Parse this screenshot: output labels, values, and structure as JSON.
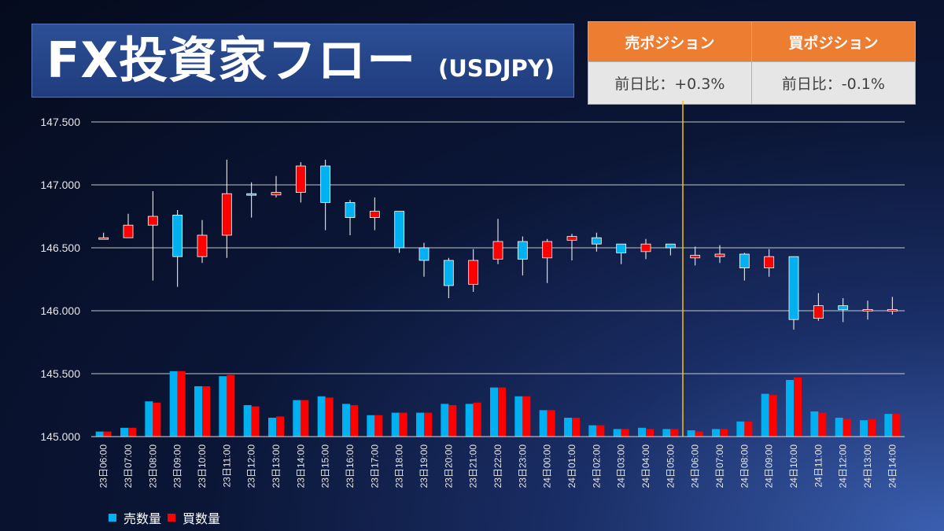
{
  "title": {
    "main": "FX投資家フロー",
    "pair": "(USDJPY)"
  },
  "positions": {
    "sell": {
      "label": "売ポジション",
      "change": "前日比：+0.3%"
    },
    "buy": {
      "label": "買ポジション",
      "change": "前日比：-0.1%"
    }
  },
  "colors": {
    "up": "#ff0000",
    "down": "#00b0f0",
    "sell_volume": "#00b0f0",
    "buy_volume": "#ff0000",
    "divider": "#ffc000",
    "grid": "#d9d9d9"
  },
  "chart_data": {
    "type": "candlestick",
    "ylim": [
      145.0,
      147.5
    ],
    "yticks": [
      "145.000",
      "145.500",
      "146.000",
      "146.500",
      "147.000",
      "147.500"
    ],
    "grid": true,
    "day_divider_after": "24日05:00",
    "categories": [
      "23日06:00",
      "23日07:00",
      "23日08:00",
      "23日09:00",
      "23日10:00",
      "23日11:00",
      "23日12:00",
      "23日13:00",
      "23日14:00",
      "23日15:00",
      "23日16:00",
      "23日17:00",
      "23日18:00",
      "23日19:00",
      "23日20:00",
      "23日21:00",
      "23日22:00",
      "23日23:00",
      "24日00:00",
      "24日01:00",
      "24日02:00",
      "24日03:00",
      "24日04:00",
      "24日05:00",
      "24日06:00",
      "24日07:00",
      "24日08:00",
      "24日09:00",
      "24日10:00",
      "24日11:00",
      "24日12:00",
      "24日13:00",
      "24日14:00"
    ],
    "ohlc": [
      [
        146.57,
        146.62,
        146.57,
        146.58
      ],
      [
        146.58,
        146.77,
        146.58,
        146.68
      ],
      [
        146.68,
        146.95,
        146.24,
        146.75
      ],
      [
        146.76,
        146.8,
        146.19,
        146.43
      ],
      [
        146.43,
        146.72,
        146.38,
        146.6
      ],
      [
        146.6,
        147.2,
        146.42,
        146.93
      ],
      [
        146.93,
        147.02,
        146.74,
        146.92
      ],
      [
        146.92,
        147.07,
        146.9,
        146.94
      ],
      [
        146.94,
        147.18,
        146.86,
        147.15
      ],
      [
        147.15,
        147.2,
        146.64,
        146.86
      ],
      [
        146.86,
        146.88,
        146.6,
        146.74
      ],
      [
        146.74,
        146.9,
        146.64,
        146.79
      ],
      [
        146.79,
        146.79,
        146.46,
        146.5
      ],
      [
        146.5,
        146.54,
        146.27,
        146.4
      ],
      [
        146.4,
        146.42,
        146.1,
        146.2
      ],
      [
        146.21,
        146.49,
        146.15,
        146.4
      ],
      [
        146.41,
        146.73,
        146.37,
        146.55
      ],
      [
        146.55,
        146.59,
        146.28,
        146.41
      ],
      [
        146.42,
        146.57,
        146.22,
        146.55
      ],
      [
        146.56,
        146.61,
        146.4,
        146.59
      ],
      [
        146.58,
        146.62,
        146.47,
        146.53
      ],
      [
        146.53,
        146.53,
        146.37,
        146.46
      ],
      [
        146.47,
        146.57,
        146.41,
        146.53
      ],
      [
        146.53,
        146.53,
        146.44,
        146.5
      ],
      [
        146.42,
        146.51,
        146.36,
        146.44
      ],
      [
        146.43,
        146.52,
        146.38,
        146.45
      ],
      [
        146.45,
        146.46,
        146.24,
        146.34
      ],
      [
        146.34,
        146.49,
        146.27,
        146.43
      ],
      [
        146.43,
        146.43,
        145.85,
        145.93
      ],
      [
        145.94,
        146.14,
        145.92,
        146.04
      ],
      [
        146.04,
        146.1,
        145.91,
        146.01
      ],
      [
        146.01,
        146.08,
        145.93,
        146.01
      ],
      [
        146.01,
        146.11,
        145.97,
        146.01
      ]
    ],
    "series": [
      {
        "name": "売数量",
        "values": [
          145.04,
          145.07,
          145.28,
          145.52,
          145.4,
          145.48,
          145.25,
          145.15,
          145.29,
          145.32,
          145.26,
          145.17,
          145.19,
          145.19,
          145.26,
          145.26,
          145.39,
          145.32,
          145.21,
          145.15,
          145.09,
          145.06,
          145.07,
          145.06,
          145.05,
          145.06,
          145.12,
          145.34,
          145.45,
          145.2,
          145.15,
          145.13,
          145.18
        ]
      },
      {
        "name": "買数量",
        "values": [
          145.04,
          145.07,
          145.27,
          145.52,
          145.4,
          145.49,
          145.24,
          145.16,
          145.29,
          145.31,
          145.25,
          145.17,
          145.19,
          145.19,
          145.25,
          145.27,
          145.39,
          145.32,
          145.21,
          145.15,
          145.09,
          145.06,
          145.06,
          145.06,
          145.04,
          145.06,
          145.12,
          145.33,
          145.47,
          145.19,
          145.14,
          145.14,
          145.18
        ]
      }
    ]
  }
}
